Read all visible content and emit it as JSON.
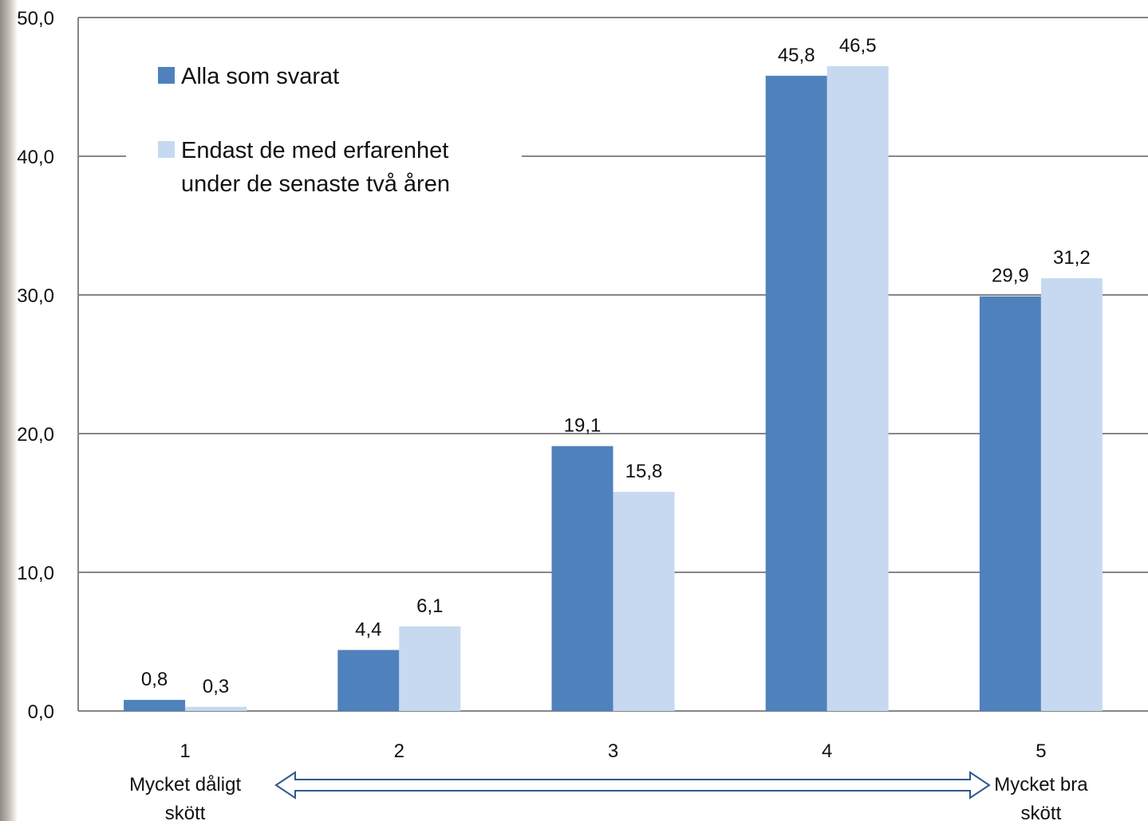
{
  "chart_data": {
    "type": "bar",
    "categories": [
      "1",
      "2",
      "3",
      "4",
      "5"
    ],
    "series": [
      {
        "name": "Alla som svarat",
        "color": "#4f81bd",
        "values": [
          0.8,
          4.4,
          19.1,
          45.8,
          29.9
        ],
        "labels": [
          "0,8",
          "4,4",
          "19,1",
          "45,8",
          "29,9"
        ]
      },
      {
        "name_lines": [
          "Endast de med erfarenhet",
          "under de senaste två åren"
        ],
        "color": "#c6d9f0",
        "values": [
          0.3,
          6.1,
          15.8,
          46.5,
          31.2
        ],
        "labels": [
          "0,3",
          "6,1",
          "15,8",
          "46,5",
          "31,2"
        ]
      }
    ],
    "ylim": [
      0,
      50
    ],
    "yticks": [
      0,
      10,
      20,
      30,
      40,
      50
    ],
    "ytick_labels": [
      "0,0",
      "10,0",
      "20,0",
      "30,0",
      "40,0",
      "50,0"
    ],
    "grid": true,
    "legend_position": "top-left",
    "scale_annotation": {
      "low_label": [
        "Mycket dåligt",
        "skött"
      ],
      "high_label": [
        "Mycket bra",
        "skött"
      ]
    }
  }
}
